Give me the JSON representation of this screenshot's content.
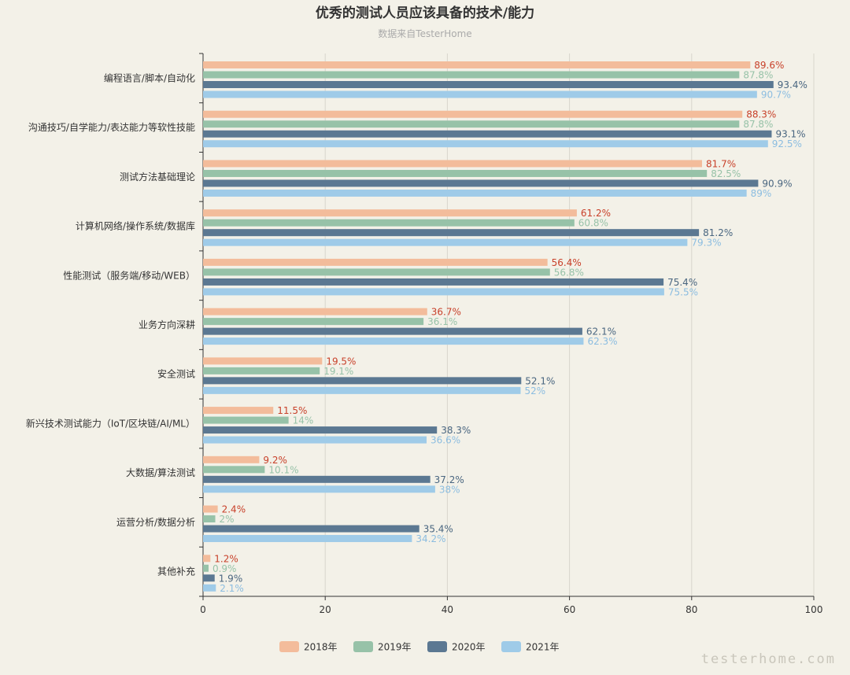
{
  "chart_data": {
    "type": "bar",
    "orientation": "horizontal",
    "title": "优秀的测试人员应该具备的技术/能力",
    "subtitle": "数据来自TesterHome",
    "categories": [
      "编程语言/脚本/自动化",
      "沟通技巧/自学能力/表达能力等软性技能",
      "测试方法基础理论",
      "计算机网络/操作系统/数据库",
      "性能测试（服务端/移动/WEB）",
      "业务方向深耕",
      "安全测试",
      "新兴技术测试能力（IoT/区块链/AI/ML）",
      "大数据/算法测试",
      "运营分析/数据分析",
      "其他补充"
    ],
    "series": [
      {
        "name": "2018年",
        "color": "#f3bc9b",
        "label_color": "#c8412a",
        "values": [
          89.6,
          88.3,
          81.7,
          61.2,
          56.4,
          36.7,
          19.5,
          11.5,
          9.2,
          2.4,
          1.2
        ]
      },
      {
        "name": "2019年",
        "color": "#97c2a8",
        "label_color": "#97c2a8",
        "values": [
          87.8,
          87.8,
          82.5,
          60.8,
          56.8,
          36.1,
          19.1,
          14,
          10.1,
          2,
          0.9
        ]
      },
      {
        "name": "2020年",
        "color": "#5b7892",
        "label_color": "#4a6680",
        "values": [
          93.4,
          93.1,
          90.9,
          81.2,
          75.4,
          62.1,
          52.1,
          38.3,
          37.2,
          35.4,
          1.9
        ]
      },
      {
        "name": "2021年",
        "color": "#9fcbe8",
        "label_color": "#8cbde0",
        "values": [
          90.7,
          92.5,
          89,
          79.3,
          75.5,
          62.3,
          52,
          36.6,
          38,
          34.2,
          2.1
        ]
      }
    ],
    "label_suffix": "%",
    "xlim": [
      0,
      100
    ],
    "xticks": [
      "0",
      "20",
      "40",
      "60",
      "80",
      "100"
    ],
    "grid": true,
    "legend_position": "bottom-center"
  },
  "watermark": "testerhome.com"
}
